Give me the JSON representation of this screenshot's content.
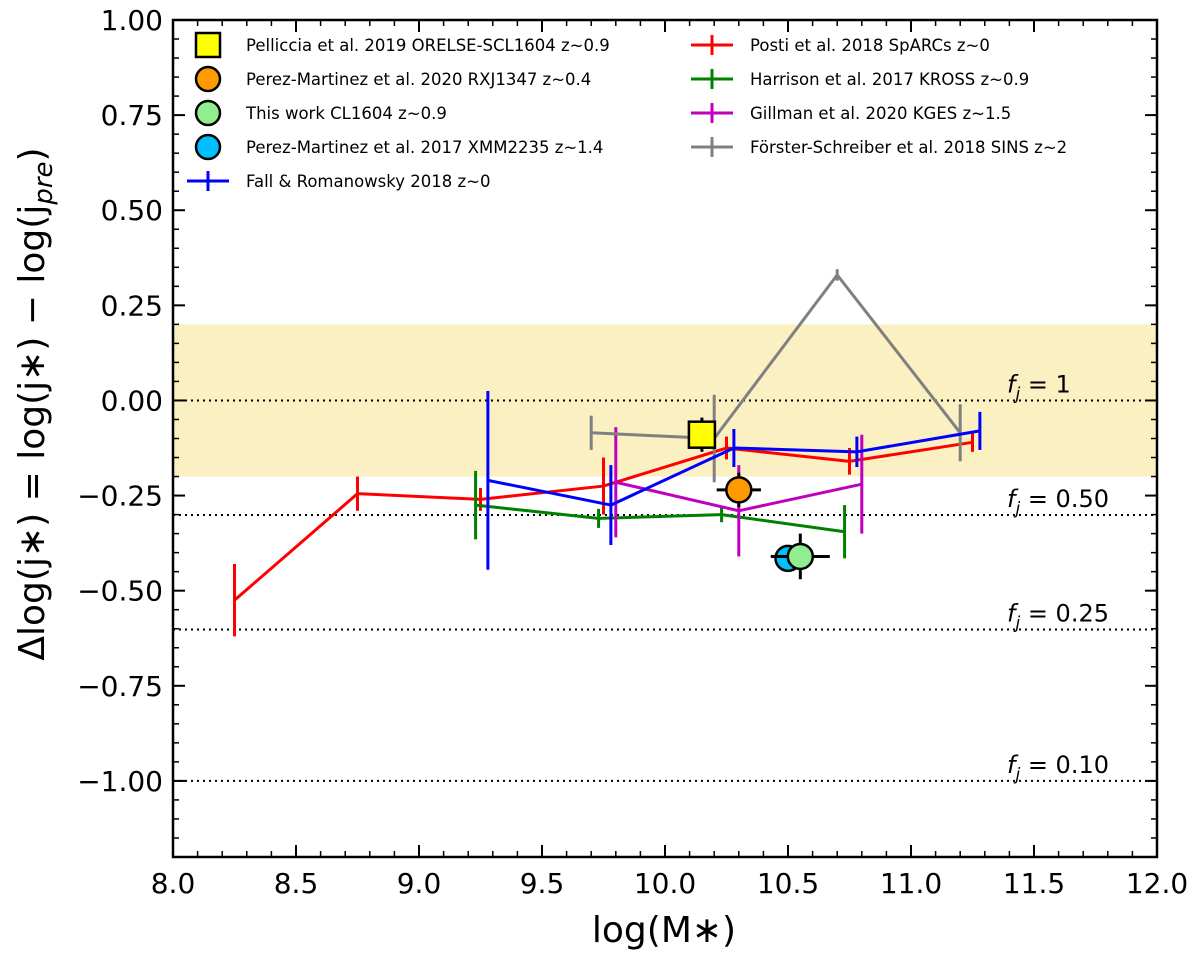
{
  "chart_data": {
    "type": "scatter",
    "xlabel": "log(M∗)",
    "ylabel": "Δlog(j∗) = log(j∗) − log(j",
    "ylabel_sub": "pre",
    "ylabel_close": ")",
    "xlim": [
      8.0,
      12.0
    ],
    "ylim": [
      -1.2,
      1.0
    ],
    "x_ticks": [
      8.0,
      8.5,
      9.0,
      9.5,
      10.0,
      10.5,
      11.0,
      11.5,
      12.0
    ],
    "x_tick_labels": [
      "8.0",
      "8.5",
      "9.0",
      "9.5",
      "10.0",
      "10.5",
      "11.0",
      "11.5",
      "12.0"
    ],
    "y_ticks": [
      1.0,
      0.75,
      0.5,
      0.25,
      0.0,
      -0.25,
      -0.5,
      -0.75,
      -1.0
    ],
    "y_tick_labels": [
      "1.00",
      "0.75",
      "0.50",
      "0.25",
      "0.00",
      "−0.25",
      "−0.50",
      "−0.75",
      "−1.00"
    ],
    "shaded_band": {
      "y_range": [
        -0.2,
        0.2
      ],
      "color": "#fbf0c2"
    },
    "reference_lines": [
      {
        "y": 0.0,
        "label_main": "f",
        "label_sub": "j",
        "label_value": " = 1"
      },
      {
        "y": -0.301,
        "label_main": "f",
        "label_sub": "j",
        "label_value": " = 0.50"
      },
      {
        "y": -0.602,
        "label_main": "f",
        "label_sub": "j",
        "label_value": " = 0.25"
      },
      {
        "y": -1.0,
        "label_main": "f",
        "label_sub": "j",
        "label_value": " = 0.10"
      }
    ],
    "series": [
      {
        "name": "Posti et al. 2018 SpARCs z~0",
        "color": "#ff0000",
        "kind": "line",
        "x": [
          8.25,
          8.75,
          9.25,
          9.75,
          10.25,
          10.75,
          11.25
        ],
        "y": [
          -0.525,
          -0.245,
          -0.26,
          -0.225,
          -0.125,
          -0.16,
          -0.11
        ],
        "yerr": [
          0.095,
          0.045,
          0.03,
          0.075,
          0.03,
          0.035,
          0.025
        ]
      },
      {
        "name": "Harrison et al. 2017 KROSS z~0.9",
        "color": "#008000",
        "kind": "line",
        "x": [
          9.23,
          9.73,
          10.23,
          10.73
        ],
        "y": [
          -0.275,
          -0.31,
          -0.3,
          -0.345
        ],
        "yerr": [
          0.09,
          0.025,
          0.02,
          0.07
        ]
      },
      {
        "name": "Gillman et al. 2020 KGES z~1.5",
        "color": "#bf00bf",
        "kind": "line",
        "x": [
          9.8,
          10.3,
          10.8
        ],
        "y": [
          -0.215,
          -0.29,
          -0.22
        ],
        "yerr": [
          0.145,
          0.12,
          0.13
        ]
      },
      {
        "name": "Förster-Schreiber et al. 2018 SINS z~2",
        "color": "#808080",
        "kind": "line",
        "x": [
          9.7,
          10.2,
          10.7,
          11.2
        ],
        "y": [
          -0.085,
          -0.1,
          0.33,
          -0.085
        ],
        "yerr": [
          0.045,
          0.115,
          0.015,
          0.075
        ]
      },
      {
        "name": "Fall & Romanowsky 2018 z~0",
        "color": "#0000ff",
        "kind": "line",
        "x": [
          9.28,
          9.78,
          10.28,
          10.78,
          11.28
        ],
        "y": [
          -0.21,
          -0.275,
          -0.125,
          -0.135,
          -0.08
        ],
        "yerr": [
          0.235,
          0.105,
          0.05,
          0.04,
          0.05
        ]
      },
      {
        "name": "Pelliccia et al. 2019 ORELSE-SCL1604 z~0.9",
        "color": "#ffff00",
        "kind": "marker",
        "marker": "square",
        "x": [
          10.15
        ],
        "y": [
          -0.09
        ],
        "yerr": [
          0.045
        ],
        "xerr": [
          0.05
        ]
      },
      {
        "name": "Perez-Martinez et al. 2020 RXJ1347 z~0.4",
        "color": "#ff9900",
        "kind": "marker",
        "marker": "circle",
        "x": [
          10.3
        ],
        "y": [
          -0.235
        ],
        "yerr": [
          0.045
        ],
        "xerr": [
          0.09
        ]
      },
      {
        "name": "This work CL1604 z~0.9",
        "color": "#90ee90",
        "kind": "marker",
        "marker": "circle",
        "x": [
          10.55
        ],
        "y": [
          -0.41
        ],
        "yerr": [
          0.06
        ],
        "xerr": [
          0.12
        ]
      },
      {
        "name": "Perez-Martinez et al. 2017 XMM2235 z~1.4",
        "color": "#00bfff",
        "kind": "marker",
        "marker": "circle",
        "x": [
          10.5
        ],
        "y": [
          -0.415
        ],
        "yerr": [
          0.0
        ],
        "xerr": [
          0.0
        ]
      }
    ],
    "legend": {
      "placement": "top",
      "left_column": [
        "Pelliccia et al. 2019 ORELSE-SCL1604 z~0.9",
        "Perez-Martinez et al. 2020 RXJ1347 z~0.4",
        "This work CL1604 z~0.9",
        "Perez-Martinez et al. 2017 XMM2235 z~1.4",
        "Fall & Romanowsky 2018 z~0"
      ],
      "right_column": [
        "Posti et al. 2018 SpARCs z~0",
        "Harrison et al. 2017 KROSS z~0.9",
        "Gillman et al. 2020 KGES z~1.5",
        "Förster-Schreiber et al. 2018 SINS z~2"
      ]
    }
  }
}
